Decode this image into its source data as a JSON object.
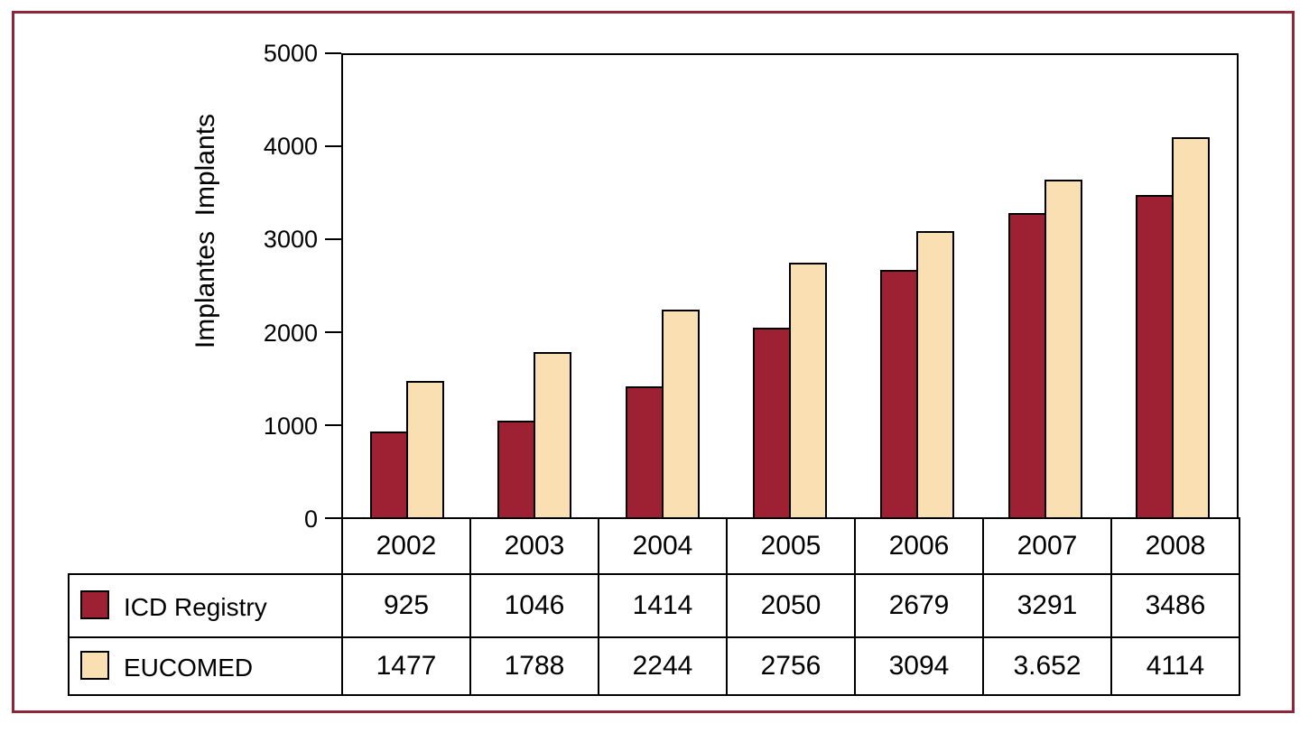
{
  "figure": {
    "border_color": "#8e2639",
    "axis_color": "#000000"
  },
  "chart_data": {
    "type": "bar",
    "title": "",
    "xlabel": "",
    "ylabel": "Implantes  Implants",
    "ylim": [
      0,
      5000
    ],
    "y_ticks": [
      "5000",
      "4000",
      "3000",
      "2000",
      "1000",
      "0"
    ],
    "grid": false,
    "legend_position": "table-rows-bottom-left",
    "categories": [
      "2002",
      "2003",
      "2004",
      "2005",
      "2006",
      "2007",
      "2008"
    ],
    "series": [
      {
        "name": "ICD Registry",
        "color": "#9e2033",
        "values": [
          925,
          1046,
          1414,
          2050,
          2679,
          3291,
          3486
        ]
      },
      {
        "name": "EUCOMED",
        "color": "#f9dfb1",
        "values": [
          1477,
          1788,
          2244,
          2756,
          3094,
          3652,
          4114
        ]
      }
    ]
  },
  "table": {
    "years": [
      "2002",
      "2003",
      "2004",
      "2005",
      "2006",
      "2007",
      "2008"
    ],
    "icd_label": "ICD Registry",
    "icd_values": [
      "925",
      "1046",
      "1414",
      "2050",
      "2679",
      "3291",
      "3486"
    ],
    "eucomed_label": "EUCOMED",
    "eucomed_values": [
      "1477",
      "1788",
      "2244",
      "2756",
      "3094",
      "3.652",
      "4114"
    ]
  }
}
